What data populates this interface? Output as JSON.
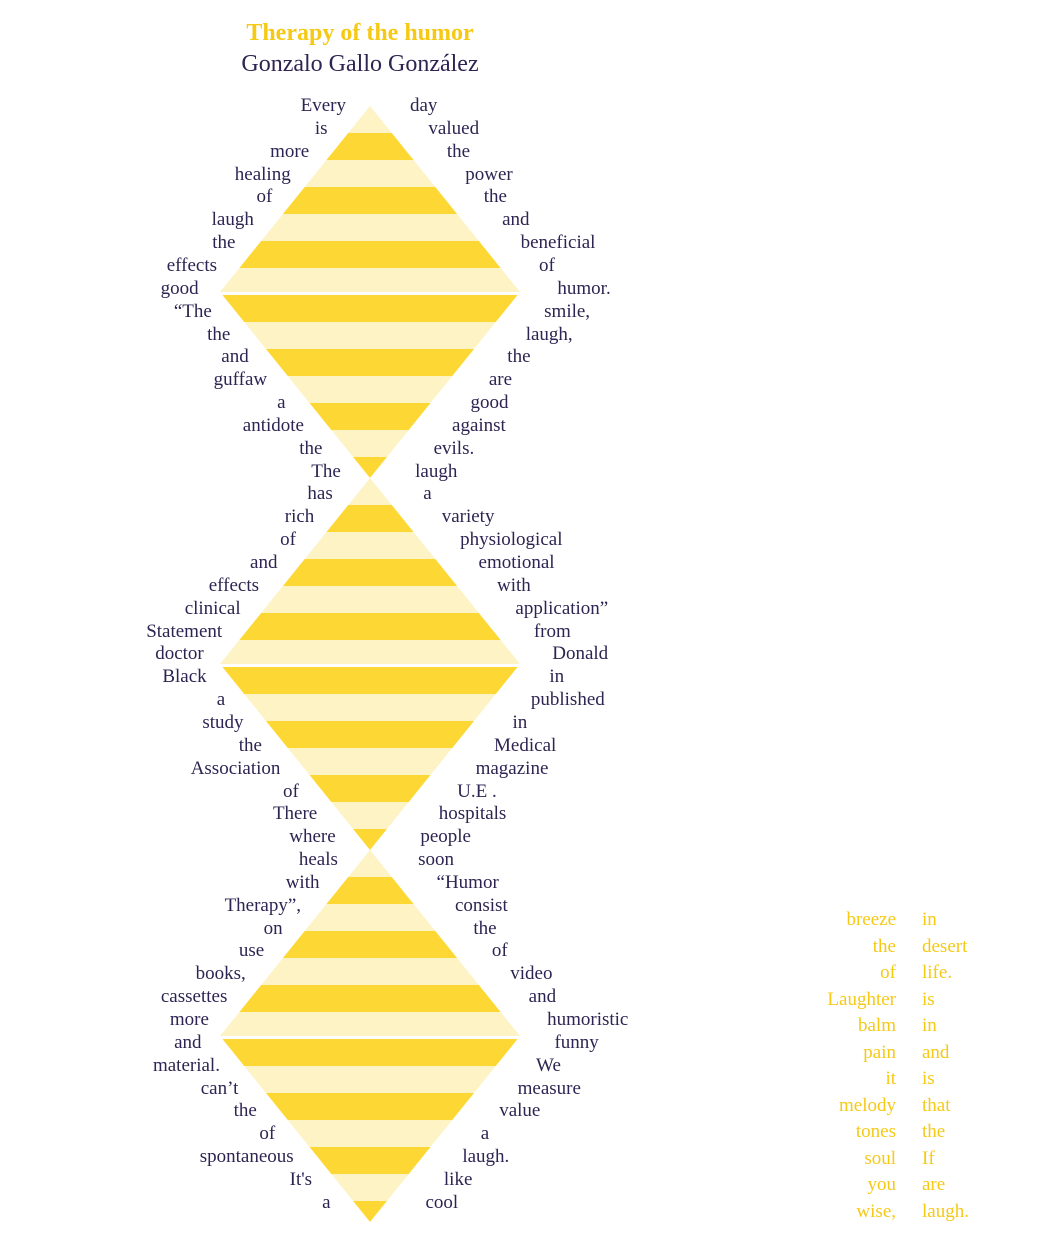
{
  "title": "Therapy of the humor",
  "author": "Gonzalo Gallo González",
  "colors": {
    "text": "#2e2452",
    "accent": "#f6c915",
    "stripe_dark": "#fdd835",
    "stripe_light": "#fdf3c4"
  },
  "left_column": [
    "Every",
    "is",
    "more",
    "healing",
    "of",
    "laugh",
    "the",
    "effects",
    "good",
    "“The",
    "the",
    "and",
    "guffaw",
    "a",
    "antidote",
    "the",
    "The",
    "has",
    "rich",
    "of",
    "and",
    "effects",
    "clinical",
    "Statement",
    "doctor",
    "Black",
    "a",
    "study",
    "the",
    "Association",
    "of",
    "There",
    "where",
    "heals",
    "with",
    "Therapy”,",
    "on",
    "use",
    "books,",
    "cassettes",
    "more",
    "and",
    "material.",
    "can’t",
    "the",
    "of",
    "spontaneous",
    "It's",
    "a"
  ],
  "right_column": [
    "day",
    "valued",
    "the",
    "power",
    "the",
    "and",
    "beneficial",
    "of",
    "humor.",
    "smile,",
    "laugh,",
    "the",
    "are",
    "good",
    "against",
    "evils.",
    "laugh",
    "a",
    "variety",
    "physiological",
    "emotional",
    "with",
    "application”",
    "from",
    "Donald",
    "in",
    "published",
    "in",
    "Medical",
    "magazine",
    "U.E .",
    "hospitals",
    "people",
    "soon",
    "“Humor",
    "consist",
    "the",
    "of",
    "video",
    "and",
    "humoristic",
    "funny",
    "We",
    "measure",
    "value",
    "a",
    "laugh.",
    "like",
    "cool"
  ],
  "side_left": [
    "breeze",
    "the",
    "of",
    "Laughter",
    "balm",
    "pain",
    "it",
    "melody",
    "tones",
    "soul",
    "you",
    "wise,"
  ],
  "side_right": [
    "in",
    "desert",
    "life.",
    "is",
    "in",
    "and",
    "is",
    "that",
    "the",
    "If",
    "are",
    "laugh."
  ]
}
